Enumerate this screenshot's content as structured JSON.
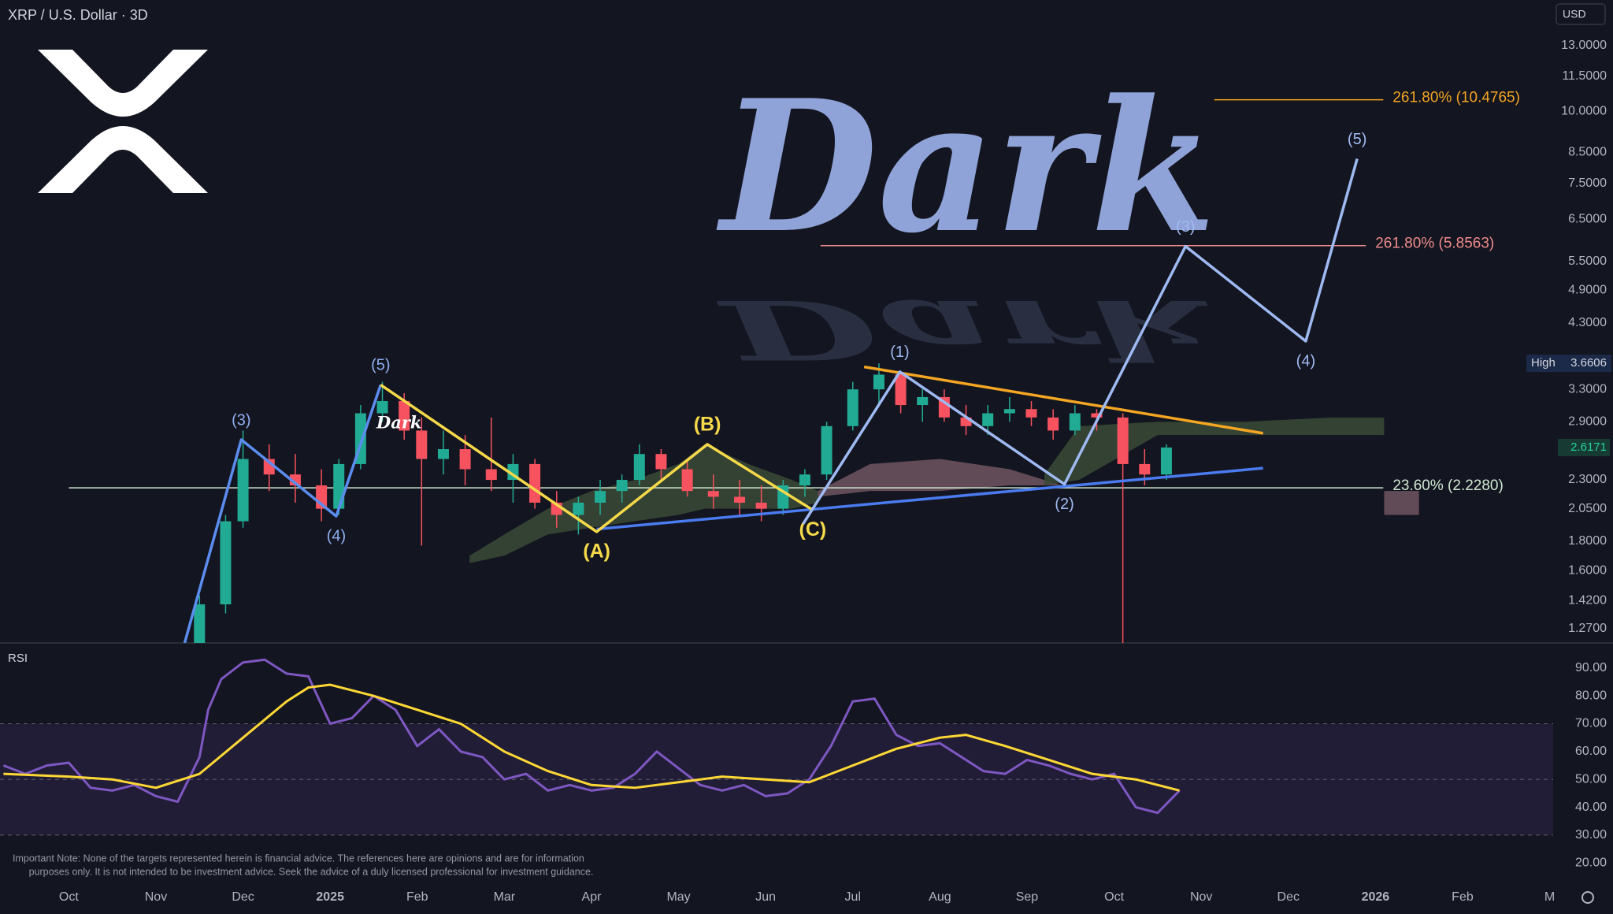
{
  "chart_data": [
    {
      "type": "candlestick",
      "title": "XRP / U.S. Dollar · 3D",
      "currency_button": "USD",
      "watermark": "Dark",
      "note": [
        "Important Note: None of the targets represented herein is financial advice. The references here are opinions and are for information",
        "purposes only. It is not intended to be investment advice. Seek the advice of a duly licensed professional for investment guidance."
      ],
      "log_scale": true,
      "grid": false,
      "xlim": [
        -0.79,
        17.04
      ],
      "ylim": [
        1.2,
        15.6
      ],
      "xticks": [
        {
          "value": 0,
          "label": "Oct"
        },
        {
          "value": 1,
          "label": "Nov"
        },
        {
          "value": 2,
          "label": "Dec"
        },
        {
          "value": 3,
          "label": "2025"
        },
        {
          "value": 4,
          "label": "Feb"
        },
        {
          "value": 5,
          "label": "Mar"
        },
        {
          "value": 6,
          "label": "Apr"
        },
        {
          "value": 7,
          "label": "May"
        },
        {
          "value": 8,
          "label": "Jun"
        },
        {
          "value": 9,
          "label": "Jul"
        },
        {
          "value": 10,
          "label": "Aug"
        },
        {
          "value": 11,
          "label": "Sep"
        },
        {
          "value": 12,
          "label": "Oct"
        },
        {
          "value": 13,
          "label": "Nov"
        },
        {
          "value": 14,
          "label": "Dec"
        },
        {
          "value": 15,
          "label": "2026"
        },
        {
          "value": 16,
          "label": "Feb"
        },
        {
          "value": 17,
          "label": "M"
        }
      ],
      "yticks": [
        {
          "value": 13,
          "label": "13.0000"
        },
        {
          "value": 11.5,
          "label": "11.5000"
        },
        {
          "value": 10,
          "label": "10.0000"
        },
        {
          "value": 8.5,
          "label": "8.5000"
        },
        {
          "value": 7.5,
          "label": "7.5000"
        },
        {
          "value": 6.5,
          "label": "6.5000"
        },
        {
          "value": 5.5,
          "label": "5.5000"
        },
        {
          "value": 4.9,
          "label": "4.9000"
        },
        {
          "value": 4.3,
          "label": "4.3000"
        },
        {
          "value": 3.3,
          "label": "3.3000"
        },
        {
          "value": 2.9,
          "label": "2.9000"
        },
        {
          "value": 2.3,
          "label": "2.3000"
        },
        {
          "value": 2.05,
          "label": "2.0500"
        },
        {
          "value": 1.8,
          "label": "1.8000"
        },
        {
          "value": 1.6,
          "label": "1.6000"
        },
        {
          "value": 1.42,
          "label": "1.4200"
        },
        {
          "value": 1.27,
          "label": "1.2700"
        }
      ],
      "up_color": "#22ab94",
      "down_color": "#f7525f",
      "candles": {
        "x": [
          1.5,
          1.8,
          2.0,
          2.3,
          2.6,
          2.9,
          3.1,
          3.35,
          3.6,
          3.85,
          4.05,
          4.3,
          4.55,
          4.85,
          5.1,
          5.35,
          5.6,
          5.85,
          6.1,
          6.35,
          6.55,
          6.8,
          7.1,
          7.4,
          7.7,
          7.95,
          8.2,
          8.45,
          8.7,
          9.0,
          9.3,
          9.55,
          9.8,
          10.05,
          10.3,
          10.55,
          10.8,
          11.05,
          11.3,
          11.55,
          11.8,
          12.1,
          12.35,
          12.6
        ],
        "open": [
          1.15,
          1.4,
          1.95,
          2.5,
          2.35,
          2.25,
          2.05,
          2.45,
          3.0,
          3.15,
          2.8,
          2.5,
          2.6,
          2.4,
          2.3,
          2.45,
          2.1,
          2.0,
          2.1,
          2.2,
          2.3,
          2.55,
          2.4,
          2.2,
          2.15,
          2.1,
          2.05,
          2.25,
          2.35,
          2.85,
          3.3,
          3.5,
          3.1,
          3.2,
          2.95,
          2.85,
          3.0,
          3.05,
          2.95,
          2.8,
          3.0,
          2.95,
          2.45,
          2.35
        ],
        "high": [
          1.45,
          2.0,
          2.8,
          2.65,
          2.55,
          2.4,
          2.5,
          3.1,
          3.4,
          3.25,
          2.95,
          2.8,
          2.75,
          2.95,
          2.55,
          2.5,
          2.2,
          2.15,
          2.3,
          2.35,
          2.65,
          2.6,
          2.5,
          2.35,
          2.3,
          2.25,
          2.3,
          2.4,
          2.9,
          3.4,
          3.66,
          3.55,
          3.3,
          3.3,
          3.1,
          3.1,
          3.2,
          3.15,
          3.05,
          3.1,
          3.05,
          3.0,
          2.6,
          2.65
        ],
        "low": [
          1.1,
          1.35,
          1.9,
          2.2,
          2.1,
          1.95,
          2.0,
          2.4,
          2.9,
          2.7,
          1.77,
          2.35,
          2.25,
          2.2,
          2.1,
          2.05,
          1.9,
          1.85,
          2.0,
          2.1,
          2.25,
          2.3,
          2.15,
          2.05,
          2.0,
          1.95,
          2.0,
          2.15,
          2.3,
          2.8,
          3.1,
          3.0,
          2.9,
          2.9,
          2.75,
          2.75,
          2.9,
          2.85,
          2.7,
          2.75,
          2.8,
          1.2,
          2.25,
          2.3
        ],
        "close": [
          1.4,
          1.95,
          2.5,
          2.35,
          2.25,
          2.05,
          2.45,
          3.0,
          3.15,
          2.8,
          2.5,
          2.6,
          2.4,
          2.3,
          2.45,
          2.1,
          2.0,
          2.1,
          2.2,
          2.3,
          2.55,
          2.4,
          2.2,
          2.15,
          2.1,
          2.05,
          2.25,
          2.35,
          2.85,
          3.3,
          3.5,
          3.1,
          3.2,
          2.95,
          2.85,
          3.0,
          3.05,
          2.95,
          2.8,
          3.0,
          2.95,
          2.45,
          2.35,
          2.6171
        ]
      },
      "clouds": [
        {
          "color": "#3a4a36",
          "x": [
            4.6,
            5.0,
            5.5,
            6.0,
            6.5,
            7.0,
            7.3,
            7.8,
            8.3,
            8.6
          ],
          "top": [
            1.7,
            1.85,
            2.05,
            2.2,
            2.3,
            2.45,
            2.65,
            2.45,
            2.3,
            2.2
          ],
          "bottom": [
            1.65,
            1.7,
            1.85,
            1.9,
            1.95,
            2.0,
            2.05,
            2.05,
            2.05,
            2.1
          ]
        },
        {
          "color": "#6e5560",
          "x": [
            8.6,
            9.2,
            10.0,
            10.8,
            11.4
          ],
          "top": [
            2.2,
            2.45,
            2.5,
            2.4,
            2.25
          ],
          "bottom": [
            2.15,
            2.2,
            2.2,
            2.25,
            2.25
          ]
        },
        {
          "color": "#3a4a36",
          "x": [
            11.2,
            11.6,
            12.5,
            13.5,
            14.5,
            15.1
          ],
          "top": [
            2.35,
            2.85,
            2.9,
            2.9,
            2.95,
            2.95
          ],
          "bottom": [
            2.25,
            2.3,
            2.75,
            2.75,
            2.75,
            2.75
          ]
        },
        {
          "color": "#6e5560",
          "x": [
            15.1,
            15.3,
            15.5
          ],
          "top": [
            2.2,
            2.2,
            2.2
          ],
          "bottom": [
            2.0,
            2.0,
            2.0
          ]
        }
      ],
      "waves": [
        {
          "color": "#5b8def",
          "label_color": "#8fb0f0",
          "label_bold": false,
          "x": [
            1.33,
            1.98,
            3.07,
            3.58
          ],
          "y": [
            1.2,
            2.7,
            1.99,
            3.36
          ],
          "labels": [
            null,
            "(3)",
            "(4)",
            "(5)"
          ]
        },
        {
          "color": "#f5d94a",
          "label_color": "#f5d94a",
          "label_bold": true,
          "x": [
            3.58,
            6.06,
            7.33,
            8.54
          ],
          "y": [
            3.36,
            1.87,
            2.65,
            2.04
          ],
          "labels": [
            null,
            "(A)",
            "(B)",
            "(C)"
          ]
        },
        {
          "color": "#9fbaf2",
          "label_color": "#9fbaf2",
          "label_bold": false,
          "x": [
            8.43,
            9.54,
            11.43,
            12.82,
            14.2,
            14.79
          ],
          "y": [
            1.93,
            3.54,
            2.26,
            5.84,
            4.0,
            8.28
          ],
          "labels": [
            null,
            "(1)",
            "(2)",
            "(3)",
            "(4)",
            "(5)"
          ]
        }
      ],
      "trendlines": [
        {
          "color": "#4a7bf0",
          "x": [
            6.06,
            13.71
          ],
          "y": [
            1.89,
            2.41
          ]
        },
        {
          "color": "#f5a623",
          "x": [
            9.13,
            13.71
          ],
          "y": [
            3.61,
            2.77
          ]
        }
      ],
      "levels": [
        {
          "label": "261.80% (10.4765)",
          "value": 10.4765,
          "x": [
            13.15,
            15.09
          ],
          "color": "#f5a623"
        },
        {
          "label": "261.80% (5.8563)",
          "value": 5.8563,
          "x": [
            8.63,
            14.89
          ],
          "color": "#f08c8c"
        },
        {
          "label": "23.60% (2.2280)",
          "value": 2.228,
          "x": [
            0,
            15.09
          ],
          "color": "#cfe8d0"
        }
      ],
      "high": {
        "label": "High",
        "value": 3.6606
      },
      "last_price": {
        "value": 2.6171
      }
    },
    {
      "type": "line",
      "title": "RSI",
      "ylim": [
        13,
        99
      ],
      "yticks": [
        {
          "value": 90,
          "label": "90.00"
        },
        {
          "value": 80,
          "label": "80.00"
        },
        {
          "value": 70,
          "label": "70.00"
        },
        {
          "value": 60,
          "label": "60.00"
        },
        {
          "value": 50,
          "label": "50.00"
        },
        {
          "value": 40,
          "label": "40.00"
        },
        {
          "value": 30,
          "label": "30.00"
        },
        {
          "value": 20,
          "label": "20.00"
        }
      ],
      "band": [
        30,
        70
      ],
      "levels": [
        70,
        50,
        30
      ],
      "series": [
        {
          "color": "#7e57c2",
          "x": [
            -0.75,
            -0.5,
            -0.25,
            0,
            0.25,
            0.5,
            0.75,
            1.0,
            1.25,
            1.5,
            1.6,
            1.75,
            2.0,
            2.25,
            2.5,
            2.75,
            3.0,
            3.25,
            3.5,
            3.75,
            4.0,
            4.25,
            4.5,
            4.75,
            5.0,
            5.25,
            5.5,
            5.75,
            6.0,
            6.25,
            6.5,
            6.75,
            7.0,
            7.25,
            7.5,
            7.75,
            8.0,
            8.25,
            8.5,
            8.75,
            9.0,
            9.25,
            9.5,
            9.75,
            10.0,
            10.25,
            10.5,
            10.75,
            11.0,
            11.25,
            11.5,
            11.75,
            12.0,
            12.25,
            12.5,
            12.75
          ],
          "values": [
            55,
            52,
            55,
            56,
            47,
            46,
            48,
            44,
            42,
            58,
            75,
            86,
            92,
            93,
            88,
            87,
            70,
            72,
            80,
            75,
            62,
            68,
            60,
            58,
            50,
            52,
            46,
            48,
            46,
            47,
            52,
            60,
            54,
            48,
            46,
            48,
            44,
            45,
            50,
            62,
            78,
            79,
            66,
            62,
            63,
            58,
            53,
            52,
            57,
            55,
            52,
            50,
            52,
            40,
            38,
            46
          ]
        },
        {
          "color": "#fdd835",
          "x": [
            -0.75,
            0,
            0.5,
            1.0,
            1.5,
            2.0,
            2.5,
            2.75,
            3.0,
            3.5,
            4.0,
            4.5,
            5.0,
            5.5,
            6.0,
            6.5,
            7.0,
            7.5,
            8.0,
            8.5,
            9.0,
            9.5,
            10.0,
            10.3,
            10.75,
            11.25,
            11.75,
            12.25,
            12.75
          ],
          "values": [
            52,
            51,
            50,
            47,
            52,
            65,
            78,
            83,
            84,
            80,
            75,
            70,
            60,
            53,
            48,
            47,
            49,
            51,
            50,
            49,
            55,
            61,
            65,
            66,
            62,
            57,
            52,
            50,
            46
          ]
        }
      ]
    }
  ]
}
